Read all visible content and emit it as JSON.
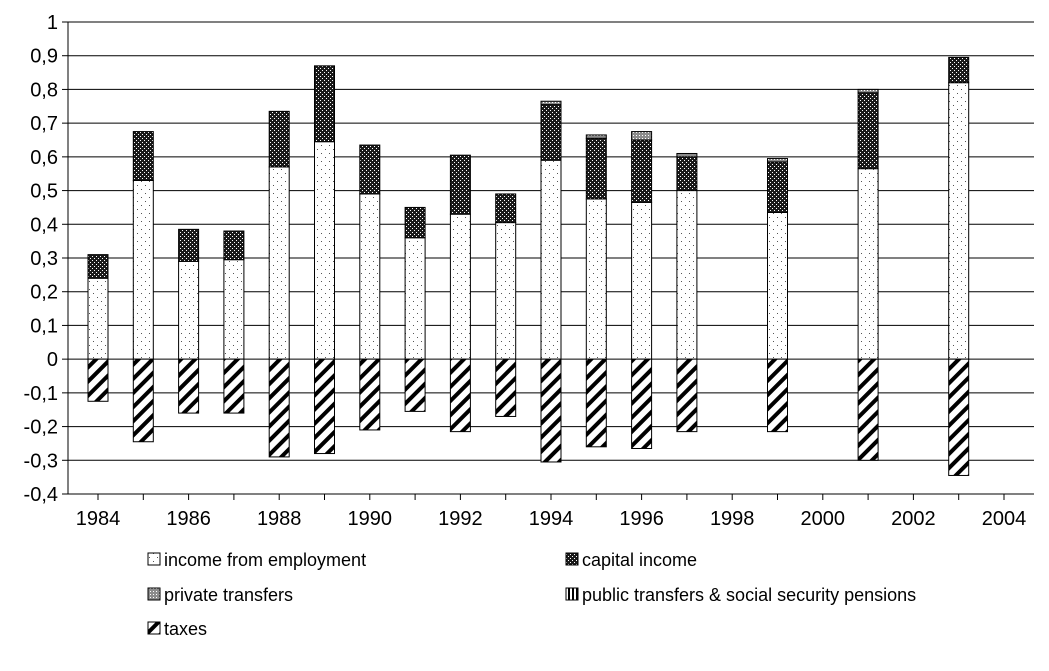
{
  "chart_data": {
    "type": "bar",
    "stacked": true,
    "x": [
      1984,
      1985,
      1986,
      1987,
      1988,
      1989,
      1990,
      1991,
      1992,
      1993,
      1994,
      1995,
      1996,
      1997,
      1999,
      2001,
      2003
    ],
    "series": [
      {
        "name": "income from employment",
        "pattern": "light-dots",
        "values": [
          0.24,
          0.53,
          0.29,
          0.295,
          0.57,
          0.645,
          0.49,
          0.36,
          0.43,
          0.405,
          0.59,
          0.475,
          0.465,
          0.5,
          0.435,
          0.565,
          0.82
        ]
      },
      {
        "name": "capital income",
        "pattern": "dark-checker",
        "values": [
          0.07,
          0.145,
          0.095,
          0.085,
          0.165,
          0.225,
          0.145,
          0.09,
          0.175,
          0.085,
          0.165,
          0.18,
          0.185,
          0.1,
          0.15,
          0.225,
          0.075
        ]
      },
      {
        "name": "private transfers",
        "pattern": "medium-dots",
        "values": [
          0,
          0,
          0,
          0,
          0,
          0,
          0,
          0,
          0,
          0,
          0.01,
          0.01,
          0.025,
          0.01,
          0.01,
          0.01,
          0
        ]
      },
      {
        "name": "public transfers & social security pensions",
        "pattern": "vertical-stripes",
        "values": [
          0,
          0,
          0,
          0,
          0,
          0,
          0,
          0,
          0,
          0,
          0,
          0,
          0,
          0,
          0,
          0,
          0
        ]
      },
      {
        "name": "taxes",
        "pattern": "diagonal-stripes",
        "values": [
          -0.125,
          -0.245,
          -0.16,
          -0.16,
          -0.29,
          -0.28,
          -0.21,
          -0.155,
          -0.215,
          -0.17,
          -0.305,
          -0.26,
          -0.265,
          -0.215,
          -0.215,
          -0.3,
          -0.345
        ]
      }
    ],
    "ylim": [
      -0.4,
      1
    ],
    "yticks": [
      "1",
      "0,9",
      "0,8",
      "0,7",
      "0,6",
      "0,5",
      "0,4",
      "0,3",
      "0,2",
      "0,1",
      "0",
      "-0,1",
      "-0,2",
      "-0,3",
      "-0,4"
    ],
    "xlim": [
      1984,
      2004
    ],
    "xticks": [
      "1984",
      "1986",
      "1988",
      "1990",
      "1992",
      "1994",
      "1996",
      "1998",
      "2000",
      "2002",
      "2004"
    ],
    "grid": true,
    "legend": "bottom",
    "title": "",
    "xlabel": "",
    "ylabel": ""
  }
}
